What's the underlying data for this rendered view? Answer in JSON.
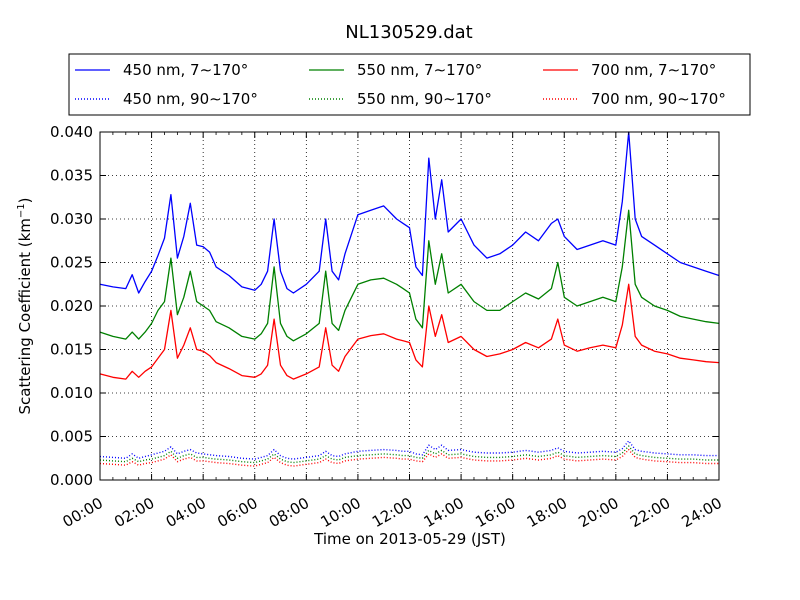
{
  "chart_data": {
    "type": "line",
    "title": "NL130529.dat",
    "xlabel": "Time on 2013-05-29 (JST)",
    "ylabel_main": "Scattering Coefficient (km",
    "ylabel_sup": "−1",
    "ylabel_end": ")",
    "xlim": [
      "00:00",
      "24:00"
    ],
    "ylim": [
      0.0,
      0.04
    ],
    "x_ticks": [
      "00:00",
      "02:00",
      "04:00",
      "06:00",
      "08:00",
      "10:00",
      "12:00",
      "14:00",
      "16:00",
      "18:00",
      "20:00",
      "22:00",
      "24:00"
    ],
    "y_ticks": [
      "0.000",
      "0.005",
      "0.010",
      "0.015",
      "0.020",
      "0.025",
      "0.030",
      "0.035",
      "0.040"
    ],
    "grid": true,
    "legend_placement": "top",
    "x_hours": [
      0,
      0.5,
      1,
      1.25,
      1.5,
      1.75,
      2,
      2.25,
      2.5,
      2.75,
      3,
      3.25,
      3.5,
      3.75,
      4,
      4.25,
      4.5,
      5,
      5.5,
      6,
      6.25,
      6.5,
      6.75,
      7,
      7.25,
      7.5,
      8,
      8.5,
      8.75,
      9,
      9.25,
      9.5,
      10,
      10.5,
      11,
      11.5,
      11.75,
      12,
      12.25,
      12.5,
      12.75,
      13,
      13.25,
      13.5,
      14,
      14.5,
      15,
      15.5,
      16,
      16.5,
      17,
      17.5,
      17.75,
      18,
      18.5,
      19,
      19.5,
      20,
      20.25,
      20.5,
      20.75,
      21,
      21.5,
      22,
      22.5,
      23,
      23.5,
      24
    ],
    "series": [
      {
        "name": "450 nm, 7∼170°",
        "color": "#0000ff",
        "style": "solid",
        "values": [
          0.0225,
          0.0222,
          0.022,
          0.0236,
          0.0215,
          0.0228,
          0.024,
          0.0258,
          0.0278,
          0.0328,
          0.0255,
          0.028,
          0.0318,
          0.027,
          0.0268,
          0.0262,
          0.0245,
          0.0235,
          0.0222,
          0.0218,
          0.0225,
          0.024,
          0.03,
          0.024,
          0.022,
          0.0215,
          0.0225,
          0.024,
          0.03,
          0.024,
          0.023,
          0.026,
          0.0305,
          0.031,
          0.0315,
          0.03,
          0.0295,
          0.029,
          0.0245,
          0.0235,
          0.037,
          0.03,
          0.0345,
          0.0285,
          0.03,
          0.027,
          0.0255,
          0.026,
          0.027,
          0.0285,
          0.0275,
          0.0295,
          0.03,
          0.028,
          0.0265,
          0.027,
          0.0275,
          0.027,
          0.032,
          0.04,
          0.03,
          0.028,
          0.027,
          0.026,
          0.025,
          0.0245,
          0.024,
          0.0235
        ]
      },
      {
        "name": "550 nm, 7∼170°",
        "color": "#008000",
        "style": "solid",
        "values": [
          0.017,
          0.0165,
          0.0162,
          0.017,
          0.0162,
          0.017,
          0.018,
          0.0195,
          0.0205,
          0.0255,
          0.019,
          0.021,
          0.024,
          0.0205,
          0.02,
          0.0195,
          0.0182,
          0.0175,
          0.0165,
          0.0162,
          0.0168,
          0.018,
          0.0245,
          0.018,
          0.0165,
          0.016,
          0.0168,
          0.018,
          0.024,
          0.018,
          0.0172,
          0.0195,
          0.0225,
          0.023,
          0.0232,
          0.0225,
          0.022,
          0.0215,
          0.0185,
          0.0175,
          0.0275,
          0.0225,
          0.026,
          0.0215,
          0.0225,
          0.0205,
          0.0195,
          0.0195,
          0.0205,
          0.0215,
          0.0208,
          0.022,
          0.025,
          0.021,
          0.02,
          0.0205,
          0.021,
          0.0205,
          0.0245,
          0.031,
          0.0225,
          0.021,
          0.02,
          0.0195,
          0.0188,
          0.0185,
          0.0182,
          0.018
        ]
      },
      {
        "name": "700 nm, 7∼170°",
        "color": "#ff0000",
        "style": "solid",
        "values": [
          0.0122,
          0.0118,
          0.0116,
          0.0125,
          0.0118,
          0.0125,
          0.013,
          0.014,
          0.015,
          0.0195,
          0.014,
          0.0155,
          0.0175,
          0.015,
          0.0148,
          0.0143,
          0.0135,
          0.0128,
          0.012,
          0.0118,
          0.0122,
          0.0132,
          0.0185,
          0.0132,
          0.012,
          0.0116,
          0.0122,
          0.013,
          0.0175,
          0.0132,
          0.0125,
          0.0142,
          0.0162,
          0.0166,
          0.0168,
          0.0162,
          0.016,
          0.0158,
          0.0138,
          0.013,
          0.02,
          0.0165,
          0.019,
          0.0158,
          0.0165,
          0.015,
          0.0142,
          0.0145,
          0.015,
          0.0158,
          0.0152,
          0.0162,
          0.0185,
          0.0155,
          0.0148,
          0.0152,
          0.0155,
          0.0152,
          0.0178,
          0.0225,
          0.0165,
          0.0155,
          0.0148,
          0.0145,
          0.014,
          0.0138,
          0.0136,
          0.0135
        ]
      },
      {
        "name": "450 nm, 90∼170°",
        "color": "#0000ff",
        "style": "dotted",
        "values": [
          0.0027,
          0.0026,
          0.0025,
          0.003,
          0.0025,
          0.0027,
          0.0029,
          0.0031,
          0.0033,
          0.0038,
          0.003,
          0.0033,
          0.0035,
          0.0031,
          0.003,
          0.0029,
          0.0028,
          0.0027,
          0.0025,
          0.0024,
          0.0026,
          0.0028,
          0.0035,
          0.0028,
          0.0025,
          0.0024,
          0.0026,
          0.0028,
          0.0033,
          0.0028,
          0.0027,
          0.003,
          0.0033,
          0.0034,
          0.0035,
          0.0034,
          0.0033,
          0.0033,
          0.003,
          0.0029,
          0.004,
          0.0035,
          0.004,
          0.0034,
          0.0035,
          0.0032,
          0.0031,
          0.0031,
          0.0032,
          0.0034,
          0.0032,
          0.0034,
          0.0037,
          0.0033,
          0.0031,
          0.0032,
          0.0033,
          0.0032,
          0.0036,
          0.0045,
          0.0035,
          0.0033,
          0.0031,
          0.003,
          0.0029,
          0.0029,
          0.0028,
          0.0028
        ]
      },
      {
        "name": "550 nm, 90∼170°",
        "color": "#008000",
        "style": "dotted",
        "values": [
          0.0023,
          0.0022,
          0.0021,
          0.0025,
          0.0021,
          0.0023,
          0.0024,
          0.0026,
          0.0028,
          0.0033,
          0.0025,
          0.0028,
          0.003,
          0.0026,
          0.0026,
          0.0025,
          0.0024,
          0.0023,
          0.0021,
          0.002,
          0.0022,
          0.0024,
          0.003,
          0.0024,
          0.0021,
          0.002,
          0.0022,
          0.0024,
          0.0028,
          0.0024,
          0.0023,
          0.0026,
          0.0028,
          0.0029,
          0.003,
          0.0029,
          0.0028,
          0.0028,
          0.0026,
          0.0025,
          0.0034,
          0.003,
          0.0034,
          0.0029,
          0.003,
          0.0027,
          0.0026,
          0.0026,
          0.0027,
          0.0029,
          0.0027,
          0.0029,
          0.0032,
          0.0028,
          0.0026,
          0.0027,
          0.0028,
          0.0027,
          0.0031,
          0.0039,
          0.003,
          0.0028,
          0.0026,
          0.0025,
          0.0024,
          0.0024,
          0.0023,
          0.0023
        ]
      },
      {
        "name": "700 nm, 90∼170°",
        "color": "#ff0000",
        "style": "dotted",
        "values": [
          0.0019,
          0.0018,
          0.0017,
          0.0021,
          0.0017,
          0.0019,
          0.002,
          0.0022,
          0.0024,
          0.0029,
          0.0021,
          0.0024,
          0.0026,
          0.0022,
          0.0022,
          0.0021,
          0.002,
          0.0019,
          0.0017,
          0.0016,
          0.0018,
          0.002,
          0.0026,
          0.002,
          0.0017,
          0.0016,
          0.0018,
          0.002,
          0.0024,
          0.002,
          0.0019,
          0.0022,
          0.0024,
          0.0025,
          0.0026,
          0.0025,
          0.0024,
          0.0024,
          0.0022,
          0.0021,
          0.003,
          0.0026,
          0.003,
          0.0025,
          0.0026,
          0.0023,
          0.0022,
          0.0022,
          0.0023,
          0.0025,
          0.0023,
          0.0025,
          0.0028,
          0.0024,
          0.0022,
          0.0023,
          0.0024,
          0.0023,
          0.0027,
          0.0035,
          0.0026,
          0.0024,
          0.0022,
          0.0021,
          0.002,
          0.002,
          0.0019,
          0.0019
        ]
      }
    ]
  }
}
